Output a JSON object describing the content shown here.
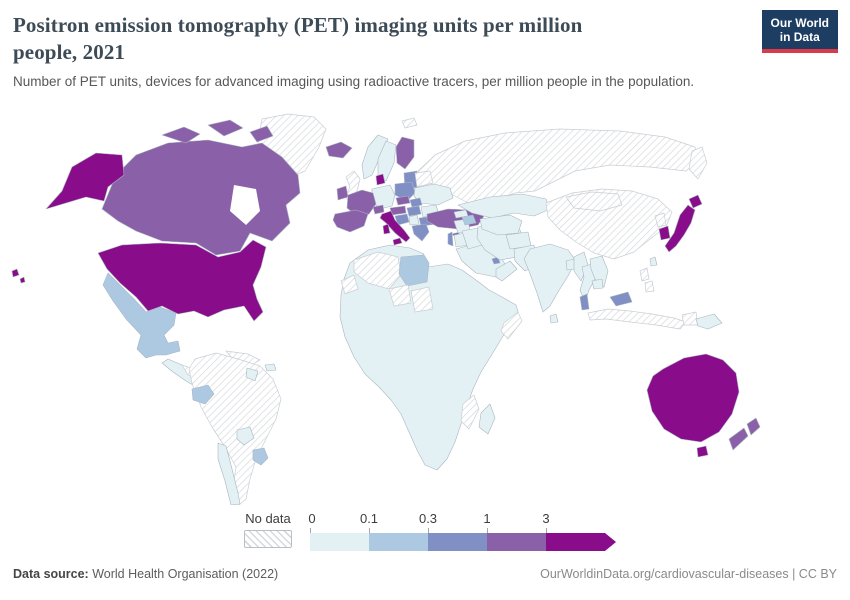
{
  "header": {
    "title_line1": "Positron emission tomography (PET) imaging units per million",
    "title_line2": "people, 2021",
    "subtitle": "Number of PET units, devices for advanced imaging using radioactive tracers, per million people in the population.",
    "logo_line1": "Our World",
    "logo_line2": "in Data"
  },
  "footer": {
    "source_label": "Data source:",
    "source_value": " World Health Organisation (2022)",
    "link": "OurWorldinData.org/cardiovascular-diseases | CC BY"
  },
  "theme": {
    "navy": "#1d3d63",
    "red": "#d93b4b",
    "border": "#a9b6c2",
    "hatch_border": "#c9ced4",
    "title_color": "#3d4b57"
  },
  "chart_data": {
    "type": "choropleth-map",
    "title": "Positron emission tomography (PET) imaging units per million people, 2021",
    "unit": "PET units per million people",
    "legend_position": "bottom",
    "legend": {
      "no_data_label": "No data",
      "ticks": [
        "0",
        "0.1",
        "0.3",
        "1",
        "3"
      ],
      "colors": [
        "#e4f1f4",
        "#adc9e1",
        "#8090c5",
        "#8a60a8",
        "#890d8b"
      ],
      "bin_ranges": [
        "0-0.1",
        "0.1-0.3",
        "0.3-1",
        "1-3",
        "3+"
      ]
    },
    "bins": {
      "greenland": "nd",
      "canada": "b3",
      "hudson_bay": "water",
      "arctic1": "b3",
      "arctic2": "b3",
      "arctic3": "b3",
      "alaska": "b4",
      "usa": "b4",
      "hawaii1": "b4",
      "hawaii2": "b4",
      "mexico": "b1",
      "central_america": "b0",
      "honduras_nicaragua": "nd",
      "cuba": "nd",
      "hispaniola": "b0",
      "south_america": "nd",
      "guyana": "b0",
      "ecuador": "b1",
      "chile": "b0",
      "paraguay": "b0",
      "uruguay": "b1",
      "iceland": "b3",
      "norway": "b0",
      "sweden": "b0",
      "finland": "b3",
      "baltics": "b2",
      "denmark": "b4",
      "uk": "nd",
      "ireland": "b3",
      "germany": "b0",
      "poland": "b2",
      "belarus": "nd",
      "ukraine": "b0",
      "france": "b3",
      "switzerland": "b3",
      "czechia": "b3",
      "slovakia": "b2",
      "austria": "b3",
      "hungary": "b2",
      "croatia": "b2",
      "serbia": "b0",
      "romania": "b0",
      "bulgaria": "b2",
      "greece": "b2",
      "iberia": "b3",
      "italy": "b4",
      "sicily": "b4",
      "sardinia": "b4",
      "turkey": "b3",
      "cyprus": "b3",
      "russia": "nd",
      "kamchatka": "nd",
      "svalbard": "nd",
      "syria": "b0",
      "israel": "b2",
      "jordan": "b0",
      "saudi_arabia": "b0",
      "yemen_oman": "b0",
      "qatar": "b2",
      "iraq": "b0",
      "iran": "b0",
      "georgia": "b0",
      "azerbaijan": "b1",
      "kazakhstan": "b0",
      "central_asia": "b0",
      "afghanistan": "b0",
      "pakistan": "b0",
      "india": "b0",
      "sri_lanka": "b0",
      "bangladesh": "b0",
      "myanmar": "b0",
      "thailand": "b0",
      "vietnam": "b0",
      "cambodia": "b0",
      "malaysia": "b2",
      "malaysia_borneo": "b2",
      "china": "nd",
      "mongolia": "nd",
      "north_korea": "nd",
      "south_korea": "b4",
      "japan": "b4",
      "hokkaido": "b4",
      "taiwan": "b0",
      "philippines1": "nd",
      "philippines2": "nd",
      "indonesia": "nd",
      "west_papua": "nd",
      "png": "b0",
      "africa_mainland": "b0",
      "algeria": "nd",
      "western_sahara": "nd",
      "libya": "b1",
      "niger": "nd",
      "chad": "nd",
      "somalia": "nd",
      "mozambique": "nd",
      "madagascar": "b0",
      "australia": "b4",
      "tasmania": "b4",
      "nz_north": "b3",
      "nz_south": "b3"
    }
  }
}
